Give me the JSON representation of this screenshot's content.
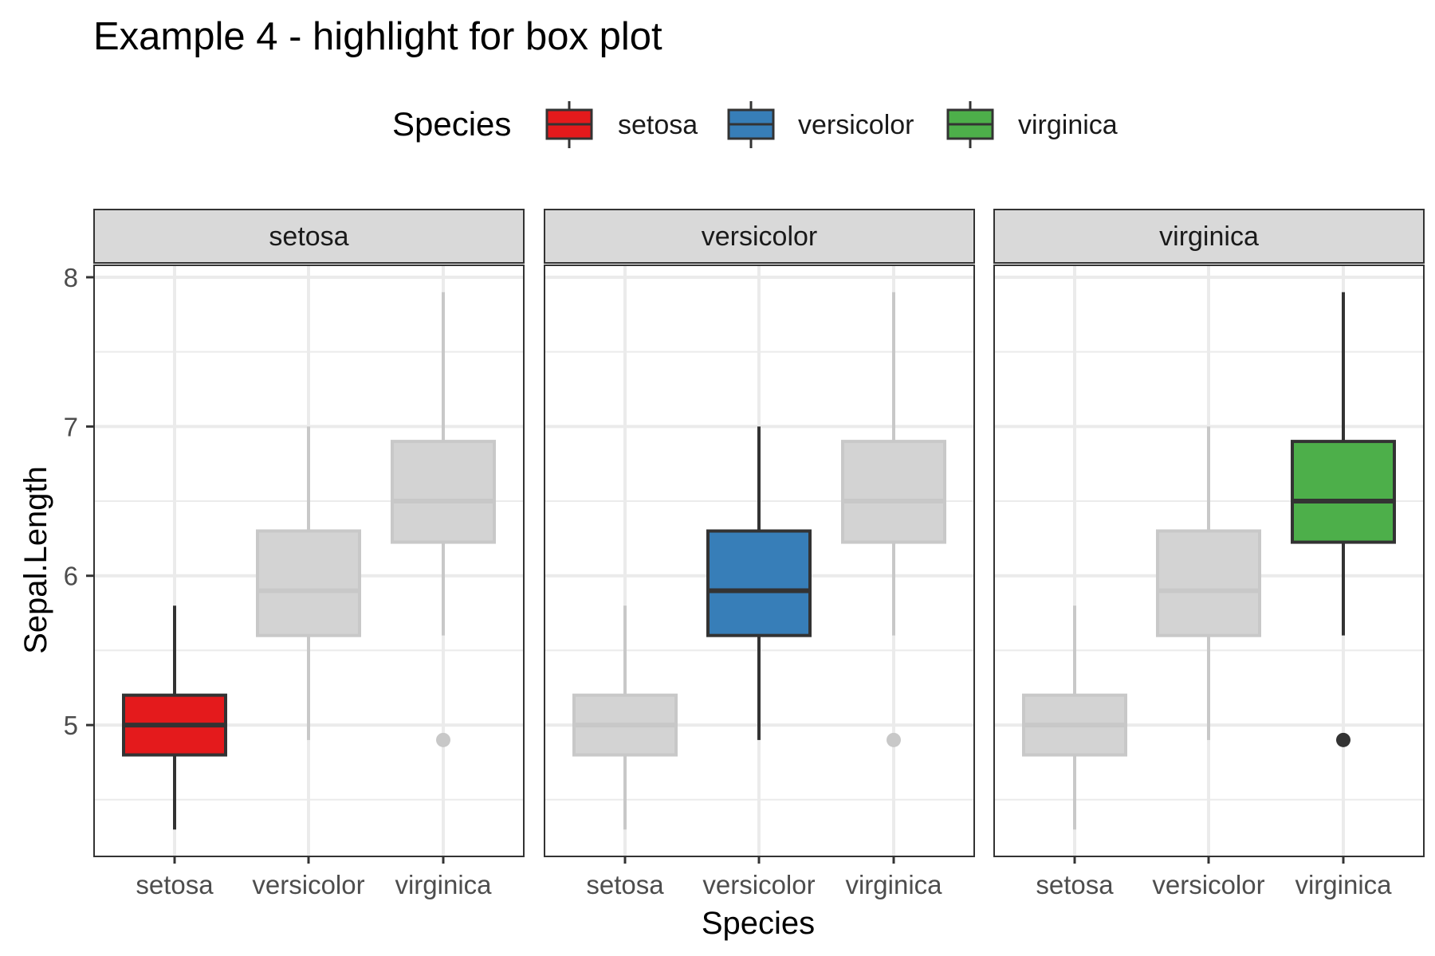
{
  "chart_data": {
    "type": "box",
    "title": "Example 4 - highlight for box plot",
    "xlabel": "Species",
    "ylabel": "Sepal.Length",
    "ylim": [
      4.12,
      8.08
    ],
    "y_ticks": [
      5,
      6,
      7,
      8
    ],
    "y_minor_ticks": [
      4.5,
      5.5,
      6.5,
      7.5
    ],
    "grid": true,
    "legend": {
      "title": "Species",
      "position": "top",
      "entries": [
        "setosa",
        "versicolor",
        "virginica"
      ]
    },
    "categories": [
      "setosa",
      "versicolor",
      "virginica"
    ],
    "colors": {
      "setosa": "#e41a1c",
      "versicolor": "#377eb8",
      "virginica": "#4daf4a",
      "faded_fill": "#d3d3d3",
      "faded_line": "#c8c8c8",
      "outline": "#333333",
      "strip_fill": "#d9d9d9",
      "grid": "#ebebeb"
    },
    "panels": [
      "setosa",
      "versicolor",
      "virginica"
    ],
    "boxes": [
      {
        "category": "setosa",
        "min": 4.3,
        "q1": 4.8,
        "median": 5.0,
        "q3": 5.2,
        "max": 5.8,
        "outliers": []
      },
      {
        "category": "versicolor",
        "min": 4.9,
        "q1": 5.6,
        "median": 5.9,
        "q3": 6.3,
        "max": 7.0,
        "outliers": []
      },
      {
        "category": "virginica",
        "min": 5.6,
        "q1": 6.225,
        "median": 6.5,
        "q3": 6.9,
        "max": 7.9,
        "outliers": [
          4.9
        ]
      }
    ]
  }
}
